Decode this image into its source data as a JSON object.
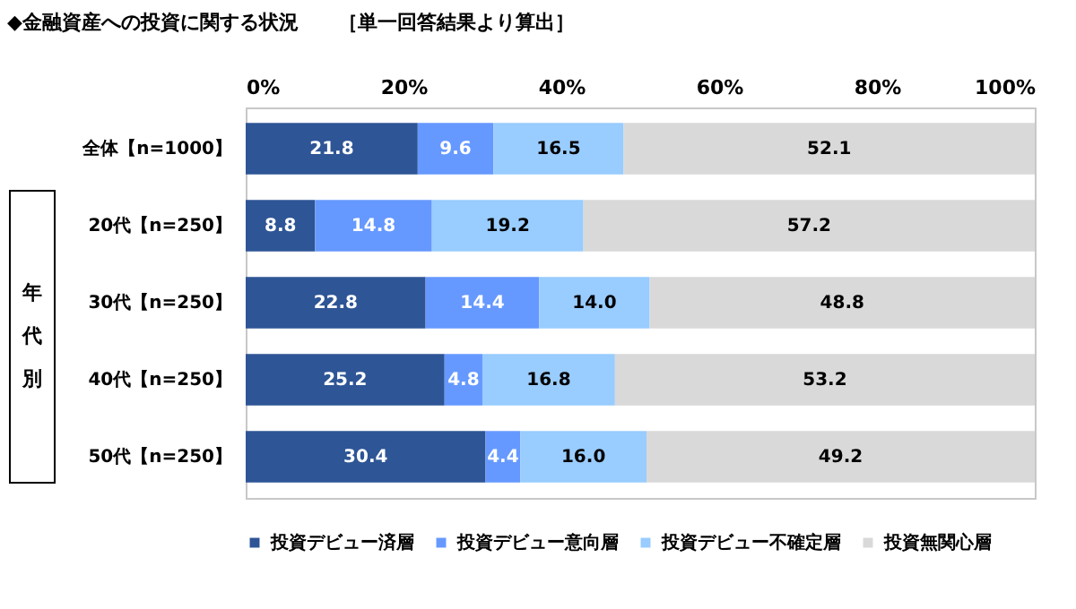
{
  "chart_data": {
    "type": "bar",
    "title": "◆金融資産への投資に関する状況",
    "subtitle": "［単一回答結果より算出］",
    "orientation": "horizontal",
    "stacked": true,
    "data_labels": true,
    "legend": "bottom",
    "categories": [
      "全体【n=1000】",
      "20代【n=250】",
      "30代【n=250】",
      "40代【n=250】",
      "50代【n=250】"
    ],
    "series": [
      {
        "name": "投資デビュー済層",
        "color": "#2e5596",
        "values": [
          21.8,
          8.8,
          22.8,
          25.2,
          30.4
        ],
        "value_labels": [
          "21.8",
          "8.8",
          "22.8",
          "25.2",
          "30.4"
        ]
      },
      {
        "name": "投資デビュー意向層",
        "color": "#6699ff",
        "values": [
          9.6,
          14.8,
          14.4,
          4.8,
          4.4
        ],
        "value_labels": [
          "9.6",
          "14.8",
          "14.4",
          "4.8",
          "4.4"
        ]
      },
      {
        "name": "投資デビュー不確定層",
        "color": "#99ccff",
        "values": [
          16.5,
          19.2,
          14.0,
          16.8,
          16.0
        ],
        "value_labels": [
          "16.5",
          "19.2",
          "14.0",
          "16.8",
          "16.0"
        ]
      },
      {
        "name": "投資無関心層",
        "color": "#d9d9d9",
        "values": [
          52.1,
          57.2,
          48.8,
          53.2,
          49.2
        ],
        "value_labels": [
          "52.1",
          "57.2",
          "48.8",
          "53.2",
          "49.2"
        ]
      }
    ],
    "xlim": [
      0,
      100
    ],
    "xticks": [
      {
        "value": 0,
        "label": "0%"
      },
      {
        "value": 20,
        "label": "20%"
      },
      {
        "value": 40,
        "label": "40%"
      },
      {
        "value": 60,
        "label": "60%"
      },
      {
        "value": 80,
        "label": "80%"
      },
      {
        "value": 100,
        "label": "100%"
      }
    ],
    "annotations": [
      "年代別"
    ]
  }
}
